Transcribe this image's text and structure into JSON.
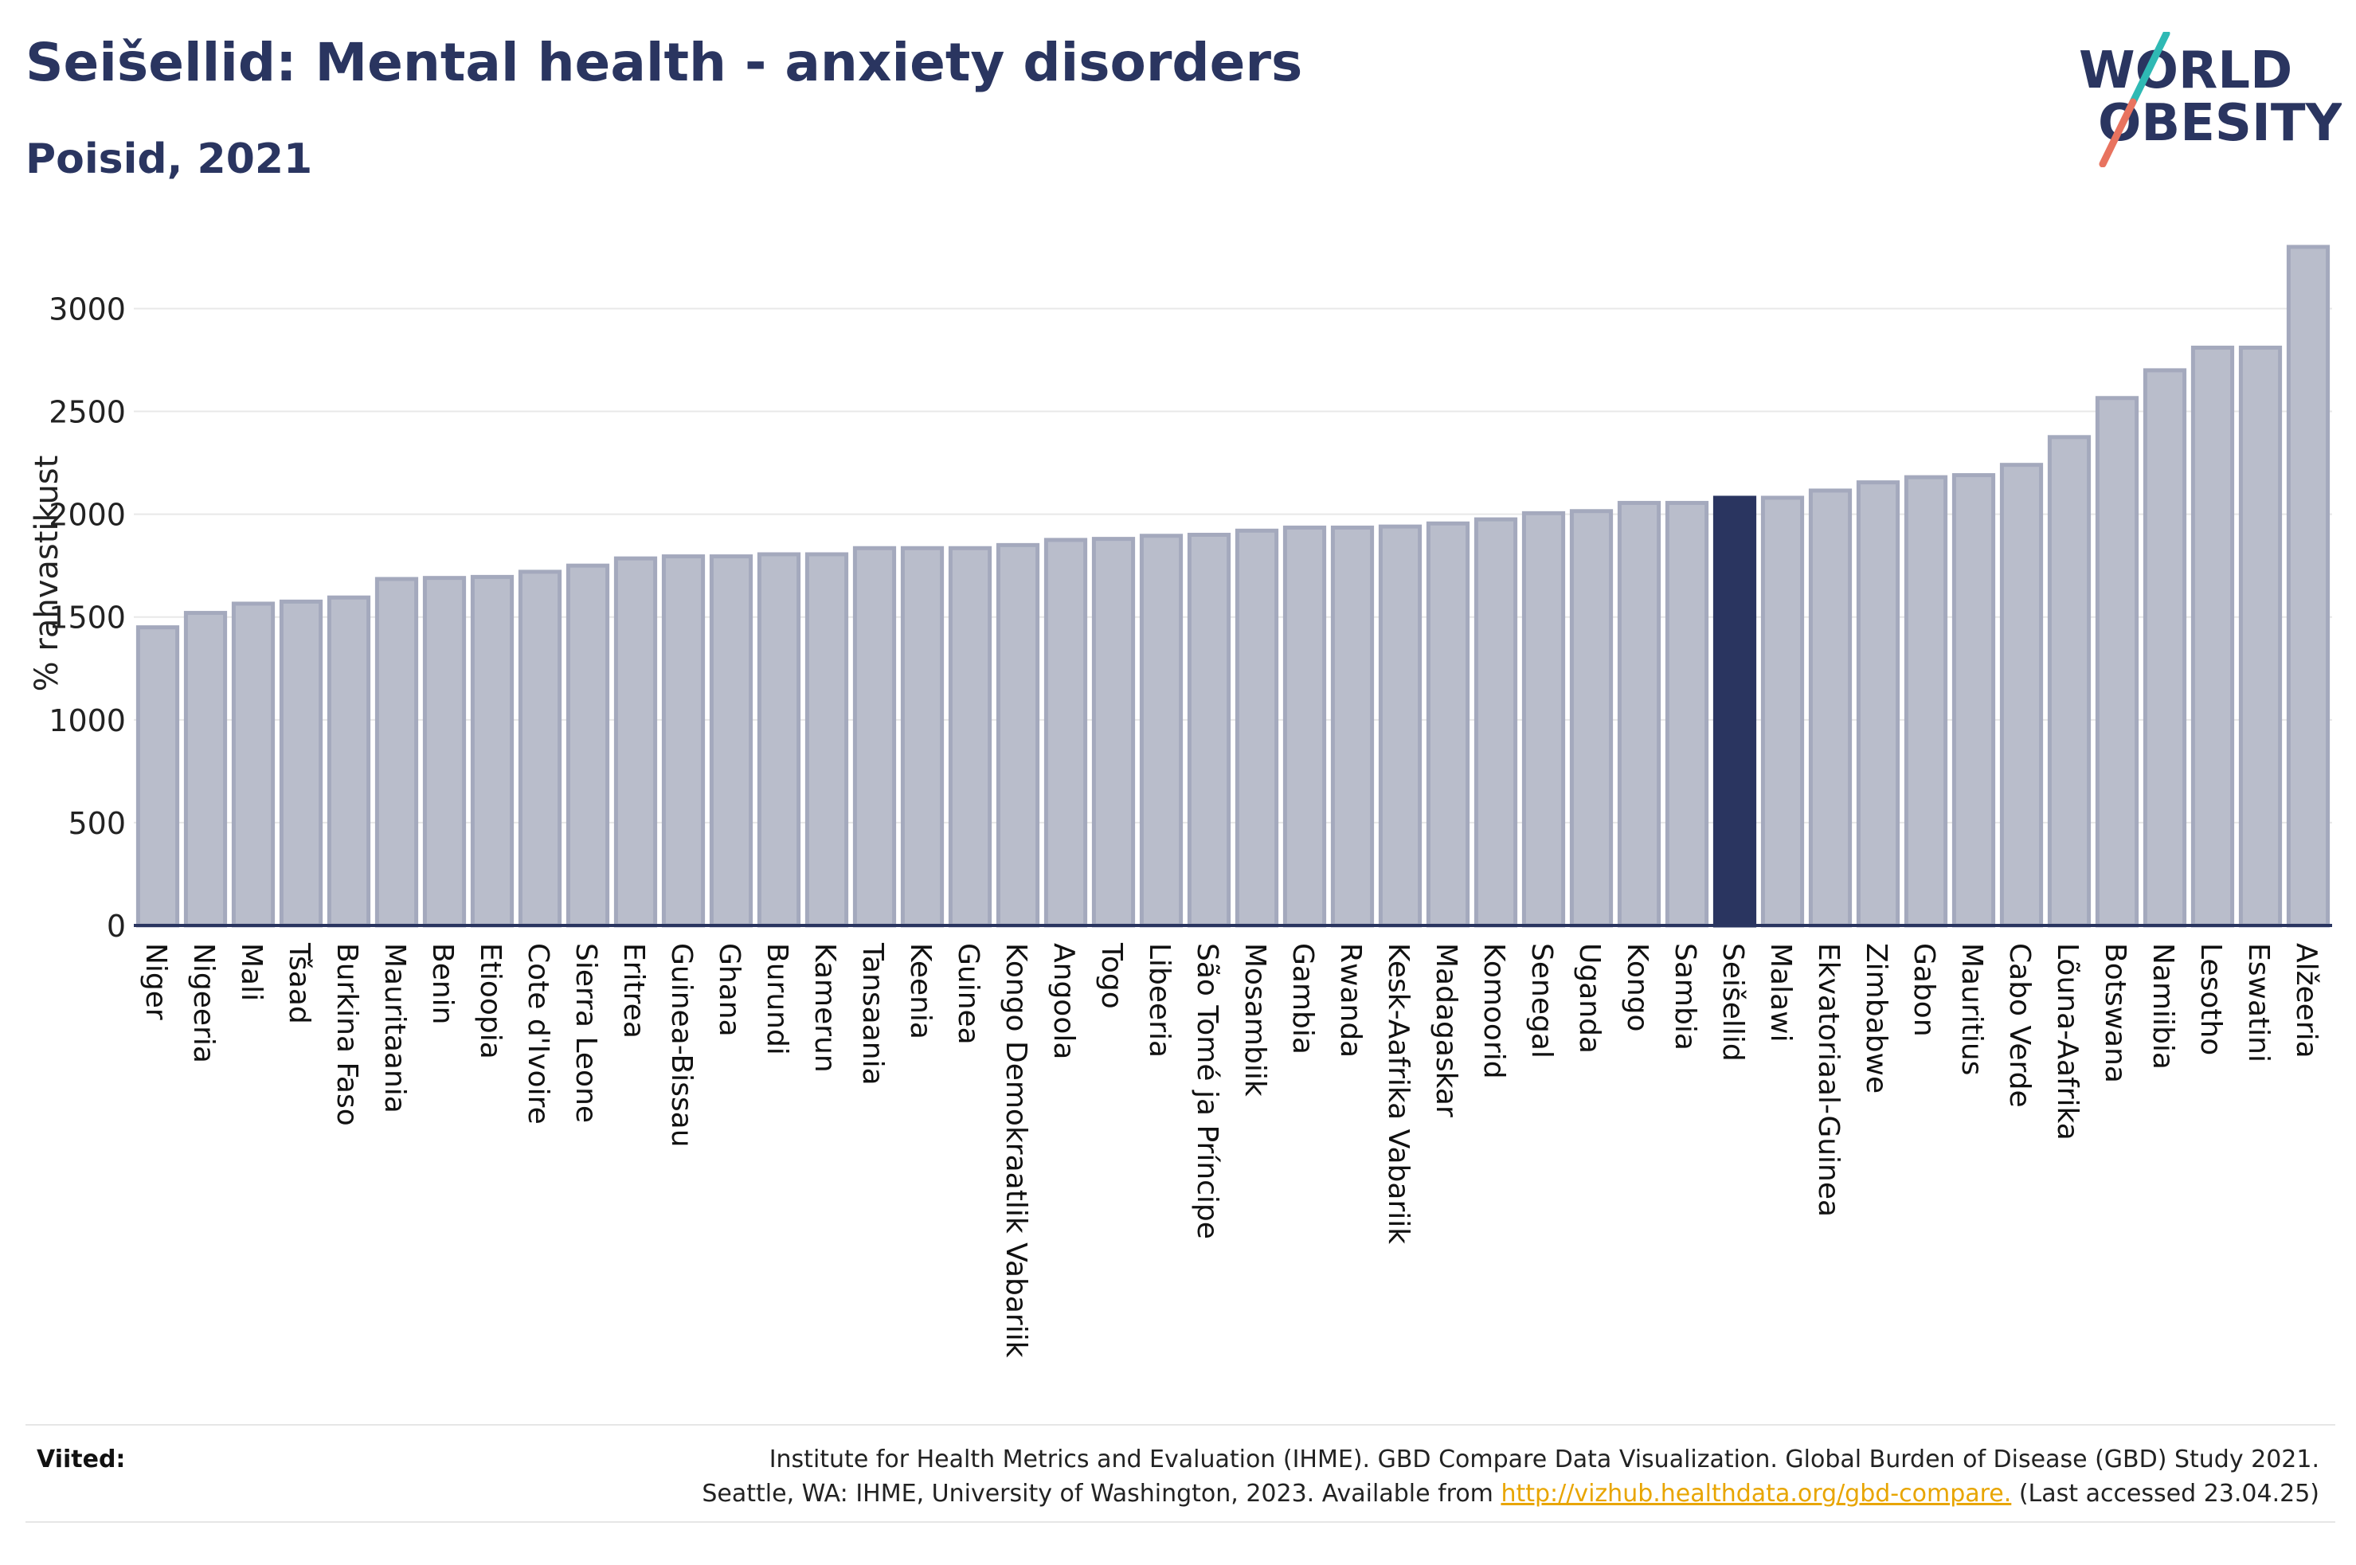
{
  "header": {
    "title": "Seišellid: Mental health - anxiety disorders",
    "subtitle": "Poisid, 2021"
  },
  "logo": {
    "line1": "WORLD",
    "line2": "OBESITY"
  },
  "footer": {
    "sources_label": "Viited:",
    "line1": "Institute for Health Metrics and Evaluation (IHME). GBD Compare Data Visualization. Global Burden of Disease (GBD) Study 2021.",
    "line2_prefix": "Seattle, WA: IHME, University of Washington, 2023. Available from ",
    "link": "http://vizhub.healthdata.org/gbd-compare.",
    "line2_suffix": " (Last accessed 23.04.25)"
  },
  "colors": {
    "bar": "#b9bdcb",
    "bar_stroke": "#a4a9bd",
    "highlight": "#2a3560",
    "axis": "#2a3560",
    "grid": "#e8e8e8"
  },
  "chart_data": {
    "type": "bar",
    "ylabel": "% rahvastikust",
    "ylim": [
      0,
      3300
    ],
    "yticks": [
      0,
      500,
      1000,
      1500,
      2000,
      2500,
      3000
    ],
    "grid": true,
    "highlight": "Seišellid",
    "categories": [
      "Niger",
      "Nigeeria",
      "Mali",
      "Tšaad",
      "Burkina Faso",
      "Mauritaania",
      "Benin",
      "Etioopia",
      "Cote d'Ivoire",
      "Sierra Leone",
      "Eritrea",
      "Guinea-Bissau",
      "Ghana",
      "Burundi",
      "Kamerun",
      "Tansaania",
      "Keenia",
      "Guinea",
      "Kongo Demokraatlik Vabariik",
      "Angoola",
      "Togo",
      "Libeeria",
      "São Tomé ja Príncipe",
      "Mosambiik",
      "Gambia",
      "Rwanda",
      "Kesk-Aafrika Vabariik",
      "Madagaskar",
      "Komoorid",
      "Senegal",
      "Uganda",
      "Kongo",
      "Sambia",
      "Seišellid",
      "Malawi",
      "Ekvatoriaal-Guinea",
      "Zimbabwe",
      "Gabon",
      "Mauritius",
      "Cabo Verde",
      "Lõuna-Aafrika",
      "Botswana",
      "Namiibia",
      "Lesotho",
      "Eswatini",
      "Alžeeria"
    ],
    "values": [
      1450,
      1520,
      1565,
      1575,
      1595,
      1685,
      1690,
      1695,
      1720,
      1750,
      1785,
      1795,
      1795,
      1805,
      1805,
      1835,
      1835,
      1835,
      1850,
      1875,
      1880,
      1895,
      1900,
      1920,
      1935,
      1935,
      1940,
      1955,
      1975,
      2005,
      2015,
      2055,
      2055,
      2080,
      2080,
      2115,
      2155,
      2180,
      2190,
      2240,
      2375,
      2565,
      2700,
      2810,
      2810,
      3300
    ]
  }
}
